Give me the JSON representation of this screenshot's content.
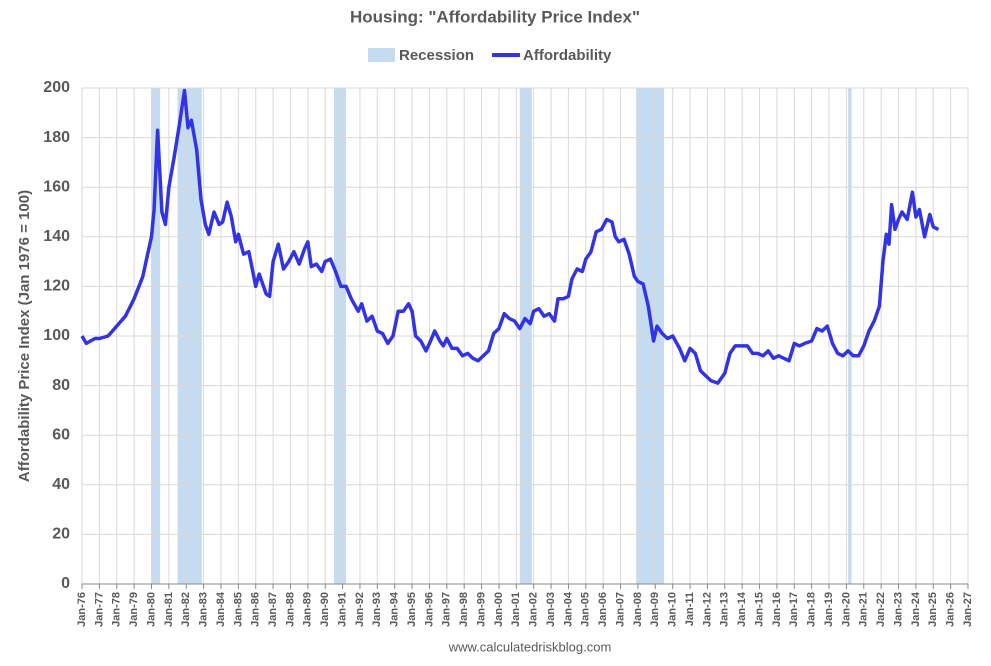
{
  "chart_data": {
    "type": "line",
    "title": "Housing: \"Affordability Price Index\"",
    "y_label": "Affordability Price Index (Jan 1976 = 100)",
    "source": "www.calculatedriskblog.com",
    "grid": true,
    "xlim": [
      1976,
      2027
    ],
    "ylim": [
      0,
      200
    ],
    "yticks": [
      0,
      20,
      40,
      60,
      80,
      100,
      120,
      140,
      160,
      180,
      200
    ],
    "xticks": [
      {
        "value": 1976,
        "label": "Jan-76"
      },
      {
        "value": 1977,
        "label": "Jan-77"
      },
      {
        "value": 1978,
        "label": "Jan-78"
      },
      {
        "value": 1979,
        "label": "Jan-79"
      },
      {
        "value": 1980,
        "label": "Jan-80"
      },
      {
        "value": 1981,
        "label": "Jan-81"
      },
      {
        "value": 1982,
        "label": "Jan-82"
      },
      {
        "value": 1983,
        "label": "Jan-83"
      },
      {
        "value": 1984,
        "label": "Jan-84"
      },
      {
        "value": 1985,
        "label": "Jan-85"
      },
      {
        "value": 1986,
        "label": "Jan-86"
      },
      {
        "value": 1987,
        "label": "Jan-87"
      },
      {
        "value": 1988,
        "label": "Jan-88"
      },
      {
        "value": 1989,
        "label": "Jan-89"
      },
      {
        "value": 1990,
        "label": "Jan-90"
      },
      {
        "value": 1991,
        "label": "Jan-91"
      },
      {
        "value": 1992,
        "label": "Jan-92"
      },
      {
        "value": 1993,
        "label": "Jan-93"
      },
      {
        "value": 1994,
        "label": "Jan-94"
      },
      {
        "value": 1995,
        "label": "Jan-95"
      },
      {
        "value": 1996,
        "label": "Jan-96"
      },
      {
        "value": 1997,
        "label": "Jan-97"
      },
      {
        "value": 1998,
        "label": "Jan-98"
      },
      {
        "value": 1999,
        "label": "Jan-99"
      },
      {
        "value": 2000,
        "label": "Jan-00"
      },
      {
        "value": 2001,
        "label": "Jan-01"
      },
      {
        "value": 2002,
        "label": "Jan-02"
      },
      {
        "value": 2003,
        "label": "Jan-03"
      },
      {
        "value": 2004,
        "label": "Jan-04"
      },
      {
        "value": 2005,
        "label": "Jan-05"
      },
      {
        "value": 2006,
        "label": "Jan-06"
      },
      {
        "value": 2007,
        "label": "Jan-07"
      },
      {
        "value": 2008,
        "label": "Jan-08"
      },
      {
        "value": 2009,
        "label": "Jan-09"
      },
      {
        "value": 2010,
        "label": "Jan-10"
      },
      {
        "value": 2011,
        "label": "Jan-11"
      },
      {
        "value": 2012,
        "label": "Jan-12"
      },
      {
        "value": 2013,
        "label": "Jan-13"
      },
      {
        "value": 2014,
        "label": "Jan-14"
      },
      {
        "value": 2015,
        "label": "Jan-15"
      },
      {
        "value": 2016,
        "label": "Jan-16"
      },
      {
        "value": 2017,
        "label": "Jan-17"
      },
      {
        "value": 2018,
        "label": "Jan-18"
      },
      {
        "value": 2019,
        "label": "Jan-19"
      },
      {
        "value": 2020,
        "label": "Jan-20"
      },
      {
        "value": 2021,
        "label": "Jan-21"
      },
      {
        "value": 2022,
        "label": "Jan-22"
      },
      {
        "value": 2023,
        "label": "Jan-23"
      },
      {
        "value": 2024,
        "label": "Jan-24"
      },
      {
        "value": 2025,
        "label": "Jan-25"
      },
      {
        "value": 2026,
        "label": "Jan-26"
      },
      {
        "value": 2027,
        "label": "Jan-27"
      }
    ],
    "recessions": {
      "name": "Recession",
      "color": "#c5dcf0",
      "spans": [
        [
          1980.0,
          1980.5
        ],
        [
          1981.5,
          1982.9
        ],
        [
          1990.5,
          1991.2
        ],
        [
          2001.2,
          2001.9
        ],
        [
          2007.9,
          2009.5
        ],
        [
          2020.1,
          2020.3
        ]
      ]
    },
    "x": [
      1976.0,
      1976.25,
      1976.75,
      1977.0,
      1977.5,
      1978.0,
      1978.5,
      1979.0,
      1979.5,
      1979.75,
      1980.0,
      1980.15,
      1980.35,
      1980.6,
      1980.8,
      1981.0,
      1981.3,
      1981.6,
      1981.9,
      1982.1,
      1982.3,
      1982.6,
      1982.85,
      1983.1,
      1983.3,
      1983.6,
      1983.9,
      1984.1,
      1984.35,
      1984.6,
      1984.85,
      1985.0,
      1985.3,
      1985.6,
      1985.8,
      1986.0,
      1986.2,
      1986.4,
      1986.6,
      1986.8,
      1987.0,
      1987.3,
      1987.6,
      1987.9,
      1988.2,
      1988.5,
      1988.8,
      1989.0,
      1989.2,
      1989.5,
      1989.8,
      1990.0,
      1990.3,
      1990.6,
      1990.9,
      1991.2,
      1991.5,
      1991.9,
      1992.1,
      1992.4,
      1992.7,
      1993.0,
      1993.3,
      1993.6,
      1993.9,
      1994.2,
      1994.5,
      1994.8,
      1995.0,
      1995.2,
      1995.5,
      1995.8,
      1996.0,
      1996.3,
      1996.6,
      1996.8,
      1997.0,
      1997.3,
      1997.6,
      1997.9,
      1998.2,
      1998.5,
      1998.8,
      1999.1,
      1999.4,
      1999.7,
      2000.0,
      2000.3,
      2000.6,
      2000.9,
      2001.2,
      2001.5,
      2001.8,
      2002.0,
      2002.3,
      2002.6,
      2002.9,
      2003.2,
      2003.4,
      2003.7,
      2004.0,
      2004.2,
      2004.5,
      2004.8,
      2005.0,
      2005.3,
      2005.6,
      2005.9,
      2006.2,
      2006.5,
      2006.7,
      2006.9,
      2007.2,
      2007.5,
      2007.8,
      2008.0,
      2008.3,
      2008.6,
      2008.9,
      2009.1,
      2009.4,
      2009.7,
      2010.0,
      2010.4,
      2010.7,
      2011.0,
      2011.3,
      2011.6,
      2011.9,
      2012.2,
      2012.6,
      2013.0,
      2013.3,
      2013.6,
      2013.9,
      2014.3,
      2014.6,
      2014.9,
      2015.2,
      2015.5,
      2015.8,
      2016.1,
      2016.4,
      2016.7,
      2017.0,
      2017.3,
      2017.6,
      2018.0,
      2018.3,
      2018.6,
      2018.9,
      2019.2,
      2019.5,
      2019.8,
      2020.1,
      2020.4,
      2020.7,
      2021.0,
      2021.3,
      2021.6,
      2021.9,
      2022.1,
      2022.3,
      2022.45,
      2022.6,
      2022.8,
      2023.0,
      2023.2,
      2023.5,
      2023.8,
      2024.0,
      2024.2,
      2024.5,
      2024.8,
      2025.0,
      2025.3
    ],
    "series": [
      {
        "name": "Affordability",
        "color": "#3333e6",
        "values": [
          100,
          97,
          99,
          99,
          100,
          104,
          108,
          115,
          124,
          132,
          140,
          151,
          183,
          150,
          145,
          160,
          172,
          185,
          199,
          184,
          187,
          175,
          155,
          145,
          141,
          150,
          145,
          146,
          154,
          148,
          138,
          141,
          133,
          134,
          127,
          120,
          125,
          121,
          117,
          116,
          130,
          137,
          127,
          130,
          134,
          129,
          135,
          138,
          128,
          129,
          126,
          130,
          131,
          126,
          120,
          120,
          115,
          110,
          113,
          106,
          108,
          102,
          101,
          97,
          100,
          110,
          110,
          113,
          110,
          100,
          98,
          94,
          97,
          102,
          98,
          96,
          99,
          95,
          95,
          92,
          93,
          91,
          90,
          92,
          94,
          101,
          103,
          109,
          107,
          106,
          103,
          107,
          105,
          110,
          111,
          108,
          109,
          106,
          115,
          115,
          116,
          123,
          127,
          126,
          131,
          134,
          142,
          143,
          147,
          146,
          140,
          138,
          139,
          133,
          124,
          122,
          121,
          112,
          98,
          104,
          101,
          99,
          100,
          95,
          90,
          95,
          93,
          86,
          84,
          82,
          81,
          85,
          93,
          96,
          96,
          96,
          93,
          93,
          92,
          94,
          91,
          92,
          91,
          90,
          97,
          96,
          97,
          98,
          103,
          102,
          104,
          97,
          93,
          92,
          94,
          92,
          92,
          96,
          102,
          106,
          112,
          130,
          141,
          137,
          153,
          143,
          147,
          150,
          147,
          158,
          148,
          151,
          140,
          149,
          144,
          143
        ]
      }
    ]
  }
}
